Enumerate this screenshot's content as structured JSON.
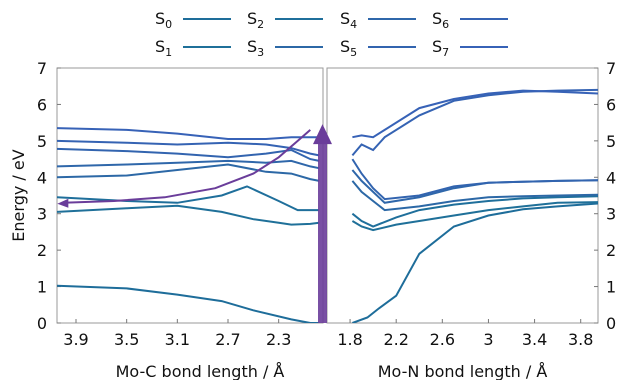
{
  "chart_data": {
    "type": "line",
    "ylabel": "Energy / eV",
    "ylim": [
      0,
      7
    ],
    "yticks": [
      "0",
      "1",
      "2",
      "3",
      "4",
      "5",
      "6",
      "7"
    ],
    "left_panel": {
      "xlabel": "Mo-C bond length / Å",
      "xlim": [
        4.05,
        1.95
      ],
      "xticks": [
        "3.9",
        "3.5",
        "3.1",
        "2.7",
        "2.3"
      ],
      "xtick_values": [
        3.9,
        3.5,
        3.1,
        2.7,
        2.3
      ]
    },
    "right_panel": {
      "xlabel": "Mo-N bond length / Å",
      "xlim": [
        1.6,
        3.95
      ],
      "xticks": [
        "1.8",
        "2.2",
        "2.6",
        "3",
        "3.4",
        "3.8"
      ],
      "xtick_values": [
        1.8,
        2.2,
        2.6,
        3.0,
        3.4,
        3.8
      ]
    },
    "legend": [
      {
        "label": "S",
        "sub": "0"
      },
      {
        "label": "S",
        "sub": "1"
      },
      {
        "label": "S",
        "sub": "2"
      },
      {
        "label": "S",
        "sub": "3"
      },
      {
        "label": "S",
        "sub": "4"
      },
      {
        "label": "S",
        "sub": "5"
      },
      {
        "label": "S",
        "sub": "6"
      },
      {
        "label": "S",
        "sub": "7"
      }
    ],
    "series": [
      {
        "color": "#1e6d9a",
        "left": {
          "x": [
            4.05,
            3.5,
            3.1,
            2.75,
            2.5,
            2.2,
            2.05,
            1.98
          ],
          "y": [
            1.02,
            0.95,
            0.78,
            0.6,
            0.35,
            0.1,
            0.0,
            0.0
          ]
        },
        "right": {
          "x": [
            1.82,
            1.95,
            2.05,
            2.2,
            2.4,
            2.7,
            3.0,
            3.3,
            3.6,
            3.95
          ],
          "y": [
            0.0,
            0.15,
            0.4,
            0.75,
            1.9,
            2.65,
            2.95,
            3.12,
            3.2,
            3.28
          ]
        }
      },
      {
        "color": "#1f7099",
        "left": {
          "x": [
            4.05,
            3.5,
            3.1,
            2.75,
            2.5,
            2.3,
            2.2,
            2.05,
            1.98
          ],
          "y": [
            3.05,
            3.15,
            3.22,
            3.05,
            2.85,
            2.75,
            2.7,
            2.72,
            2.75
          ]
        },
        "right": {
          "x": [
            1.82,
            1.9,
            2.0,
            2.2,
            2.4,
            2.7,
            3.0,
            3.3,
            3.6,
            3.95
          ],
          "y": [
            2.8,
            2.65,
            2.55,
            2.7,
            2.8,
            2.95,
            3.1,
            3.2,
            3.3,
            3.32
          ]
        }
      },
      {
        "color": "#1f6f9b",
        "left": {
          "x": [
            4.05,
            3.5,
            3.1,
            2.75,
            2.55,
            2.3,
            2.15,
            2.05,
            1.98
          ],
          "y": [
            3.45,
            3.35,
            3.3,
            3.5,
            3.75,
            3.35,
            3.1,
            3.1,
            3.1
          ]
        },
        "right": {
          "x": [
            1.82,
            1.9,
            2.0,
            2.2,
            2.4,
            2.7,
            3.0,
            3.3,
            3.6,
            3.95
          ],
          "y": [
            3.0,
            2.8,
            2.65,
            2.9,
            3.1,
            3.25,
            3.35,
            3.42,
            3.45,
            3.48
          ]
        }
      },
      {
        "color": "#2c68a6",
        "left": {
          "x": [
            4.05,
            3.5,
            3.1,
            2.7,
            2.4,
            2.2,
            2.05,
            1.98
          ],
          "y": [
            4.0,
            4.05,
            4.2,
            4.35,
            4.15,
            4.1,
            3.95,
            3.9
          ]
        },
        "right": {
          "x": [
            1.82,
            1.9,
            2.0,
            2.1,
            2.4,
            2.7,
            3.0,
            3.3,
            3.6,
            3.95
          ],
          "y": [
            3.9,
            3.6,
            3.35,
            3.1,
            3.2,
            3.35,
            3.45,
            3.48,
            3.5,
            3.52
          ]
        }
      },
      {
        "color": "#2f67aa",
        "left": {
          "x": [
            4.05,
            3.5,
            3.1,
            2.7,
            2.4,
            2.2,
            2.05,
            1.98
          ],
          "y": [
            4.3,
            4.35,
            4.4,
            4.45,
            4.4,
            4.45,
            4.3,
            4.25
          ]
        },
        "right": {
          "x": [
            1.82,
            1.9,
            2.0,
            2.1,
            2.4,
            2.7,
            3.0,
            3.3,
            3.6,
            3.95
          ],
          "y": [
            4.2,
            3.9,
            3.6,
            3.3,
            3.45,
            3.7,
            3.85,
            3.88,
            3.9,
            3.92
          ]
        }
      },
      {
        "color": "#3264af",
        "left": {
          "x": [
            4.05,
            3.5,
            3.1,
            2.7,
            2.4,
            2.2,
            2.05,
            1.98
          ],
          "y": [
            4.78,
            4.72,
            4.65,
            4.55,
            4.65,
            4.75,
            4.5,
            4.45
          ]
        },
        "right": {
          "x": [
            1.82,
            1.9,
            2.0,
            2.1,
            2.4,
            2.7,
            3.0,
            3.3,
            3.6,
            3.95
          ],
          "y": [
            4.5,
            4.1,
            3.7,
            3.4,
            3.5,
            3.75,
            3.85,
            3.88,
            3.9,
            3.92
          ]
        }
      },
      {
        "color": "#3563b3",
        "left": {
          "x": [
            4.05,
            3.5,
            3.1,
            2.7,
            2.4,
            2.2,
            2.05,
            1.98
          ],
          "y": [
            5.0,
            4.95,
            4.9,
            4.95,
            4.9,
            4.8,
            4.65,
            4.6
          ]
        },
        "right": {
          "x": [
            1.82,
            1.9,
            2.0,
            2.1,
            2.4,
            2.7,
            3.0,
            3.3,
            3.6,
            3.95
          ],
          "y": [
            4.6,
            4.9,
            4.75,
            5.1,
            5.7,
            6.1,
            6.25,
            6.35,
            6.38,
            6.4
          ]
        }
      },
      {
        "color": "#3762b7",
        "left": {
          "x": [
            4.05,
            3.5,
            3.1,
            2.7,
            2.4,
            2.2,
            2.05,
            1.98
          ],
          "y": [
            5.35,
            5.3,
            5.2,
            5.05,
            5.05,
            5.1,
            5.1,
            5.1
          ]
        },
        "right": {
          "x": [
            1.82,
            1.9,
            2.0,
            2.1,
            2.4,
            2.7,
            3.0,
            3.3,
            3.6,
            3.95
          ],
          "y": [
            5.1,
            5.15,
            5.1,
            5.3,
            5.9,
            6.15,
            6.3,
            6.38,
            6.35,
            6.3
          ]
        }
      }
    ],
    "annotation_curve": {
      "color": "#6a3d9a",
      "x": [
        4.0,
        3.6,
        3.2,
        2.8,
        2.5,
        2.3,
        2.15,
        2.05
      ],
      "y": [
        3.3,
        3.35,
        3.45,
        3.7,
        4.1,
        4.55,
        5.0,
        5.3
      ]
    },
    "excitation_arrow": {
      "color": "#6a3d9a",
      "x": 1.99,
      "y_from": 0.0,
      "y_to": 5.35
    }
  }
}
